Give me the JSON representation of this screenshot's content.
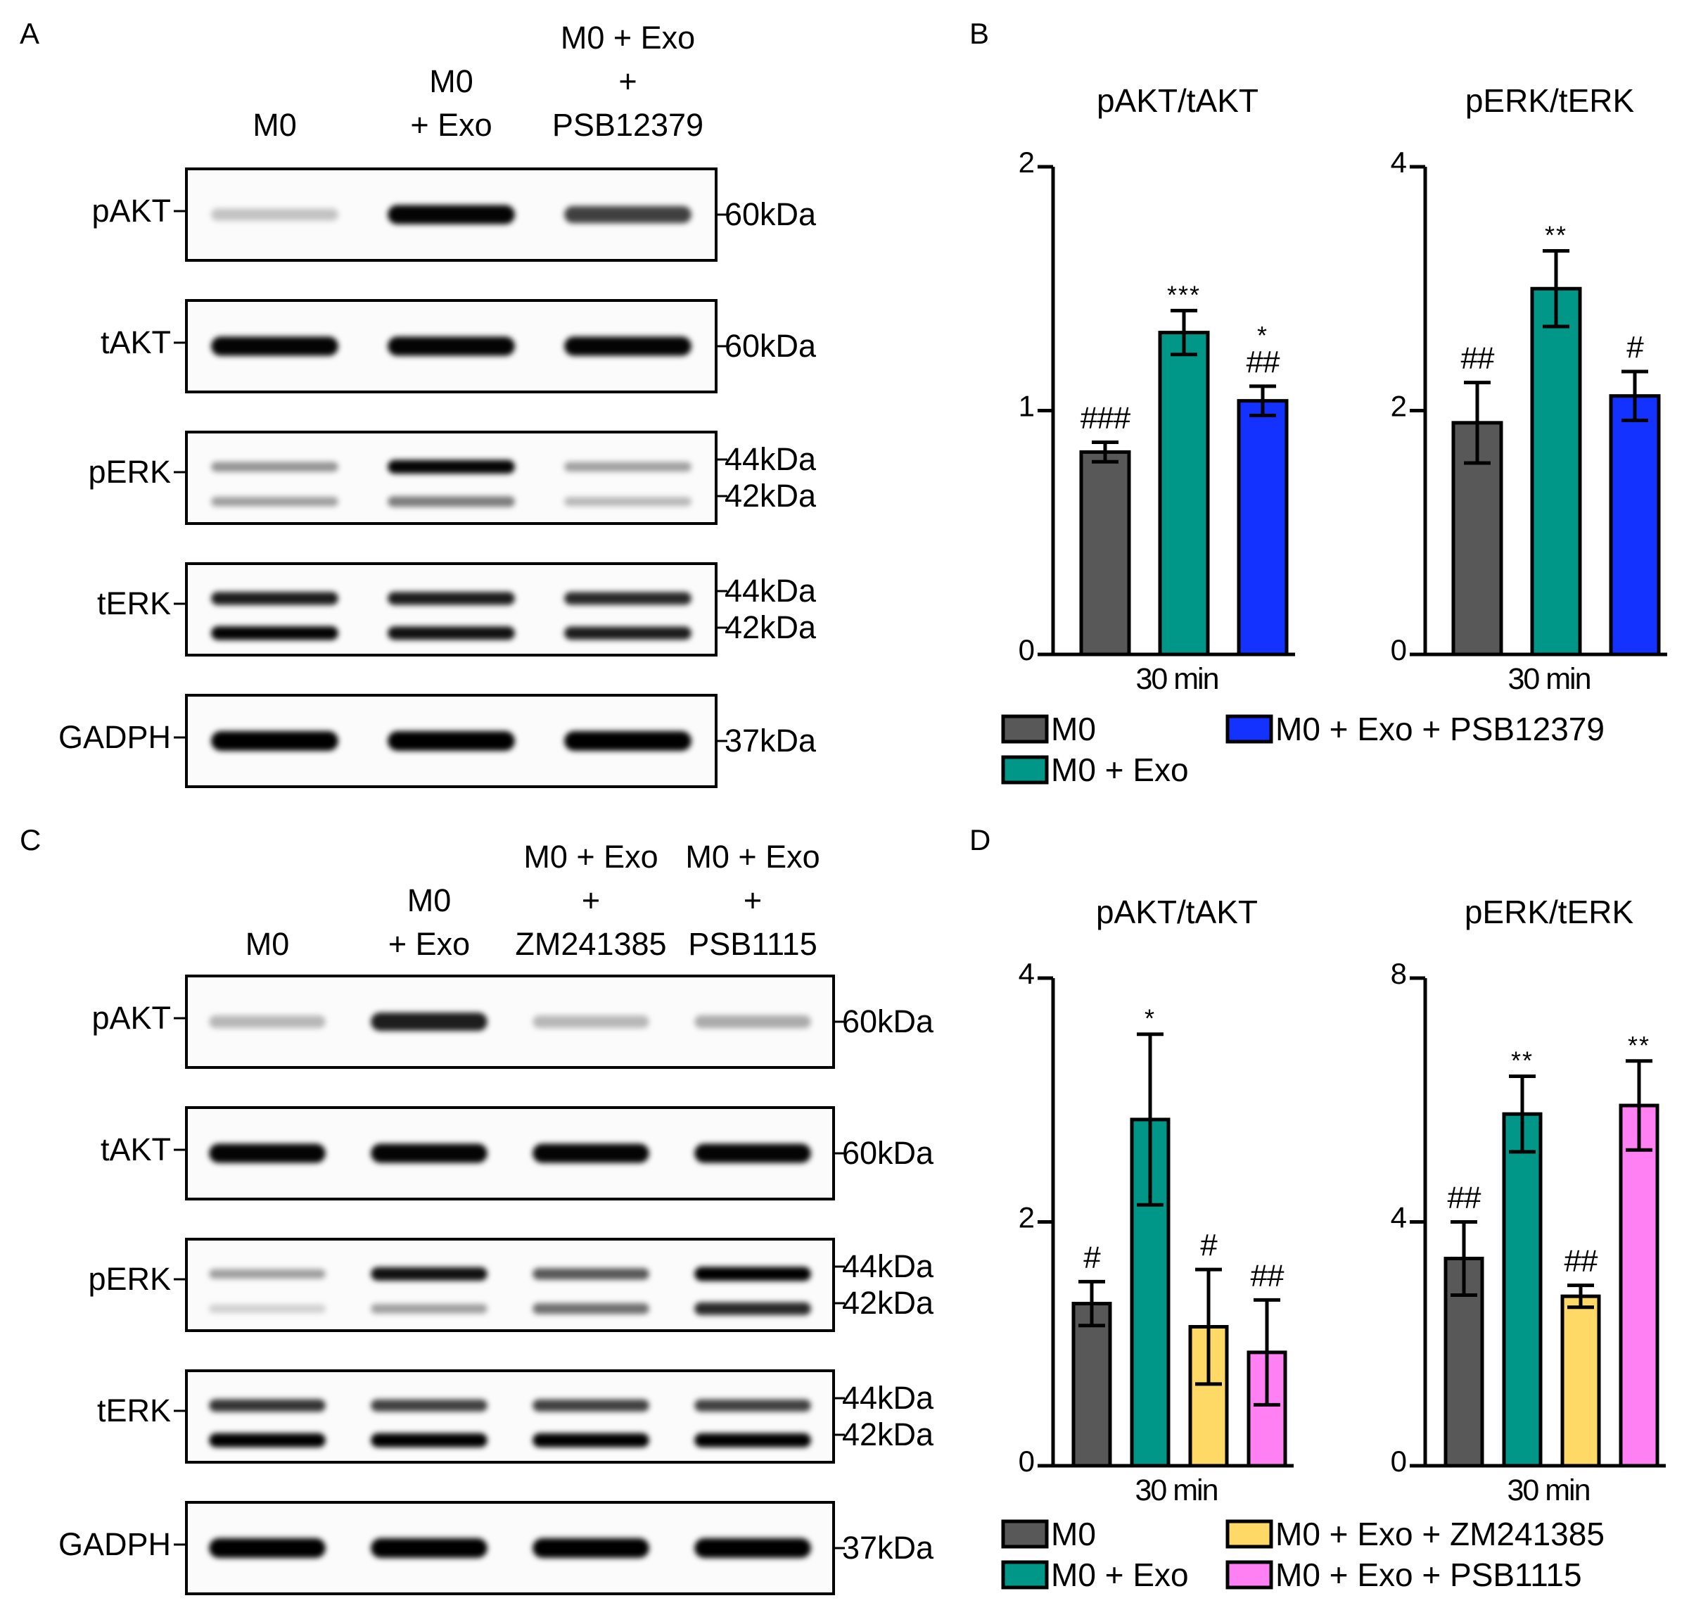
{
  "colors": {
    "m0": "#585858",
    "exo": "#009688",
    "psb12379": "#1432FF",
    "zm241385": "#FFD966",
    "psb1115": "#FF80F2"
  },
  "panels": {
    "A": {
      "letter": "A",
      "lanes": [
        [
          "M0"
        ],
        [
          "M0",
          "+ Exo"
        ],
        [
          "M0 + Exo",
          "+",
          "PSB12379"
        ]
      ],
      "blots": [
        {
          "label": "pAKT",
          "markers": [
            "60kDa"
          ],
          "bands": [
            [
              0.15,
              0.95,
              0.7
            ]
          ]
        },
        {
          "label": "tAKT",
          "markers": [
            "60kDa"
          ],
          "bands": [
            [
              0.95,
              0.95,
              0.95
            ]
          ]
        },
        {
          "label": "pERK",
          "markers": [
            "44kDa",
            "42kDa"
          ],
          "bands": [
            [
              0.35,
              0.95,
              0.3
            ],
            [
              0.3,
              0.45,
              0.2
            ]
          ]
        },
        {
          "label": "tERK",
          "markers": [
            "44kDa",
            "42kDa"
          ],
          "bands": [
            [
              0.85,
              0.85,
              0.8
            ],
            [
              0.95,
              0.9,
              0.85
            ]
          ]
        },
        {
          "label": "GADPH",
          "markers": [
            "37kDa"
          ],
          "bands": [
            [
              1.0,
              1.0,
              1.0
            ]
          ]
        }
      ]
    },
    "C": {
      "letter": "C",
      "lanes": [
        [
          "M0"
        ],
        [
          "M0",
          "+ Exo"
        ],
        [
          "M0 + Exo",
          "+",
          "ZM241385"
        ],
        [
          "M0 + Exo",
          "+",
          "PSB1115"
        ]
      ],
      "blots": [
        {
          "label": "pAKT",
          "markers": [
            "60kDa"
          ],
          "bands": [
            [
              0.2,
              0.85,
              0.2,
              0.25
            ]
          ]
        },
        {
          "label": "tAKT",
          "markers": [
            "60kDa"
          ],
          "bands": [
            [
              0.95,
              0.95,
              0.95,
              0.95
            ]
          ]
        },
        {
          "label": "pERK",
          "markers": [
            "44kDa",
            "42kDa"
          ],
          "bands": [
            [
              0.3,
              0.9,
              0.6,
              1.0
            ],
            [
              0.1,
              0.3,
              0.5,
              0.8
            ]
          ]
        },
        {
          "label": "tERK",
          "markers": [
            "44kDa",
            "42kDa"
          ],
          "bands": [
            [
              0.75,
              0.7,
              0.7,
              0.7
            ],
            [
              1.0,
              1.0,
              1.0,
              1.0
            ]
          ]
        },
        {
          "label": "GADPH",
          "markers": [
            "37kDa"
          ],
          "bands": [
            [
              1.0,
              1.0,
              1.0,
              1.0
            ]
          ]
        }
      ]
    },
    "B": {
      "letter": "B",
      "legend": [
        {
          "label": "M0",
          "color": "#585858"
        },
        {
          "label": "M0 + Exo",
          "color": "#009688"
        },
        {
          "label": "M0 + Exo + PSB12379",
          "color": "#1432FF"
        }
      ]
    },
    "D": {
      "letter": "D",
      "legend": [
        {
          "label": "M0",
          "color": "#585858"
        },
        {
          "label": "M0 + Exo",
          "color": "#009688"
        },
        {
          "label": "M0 + Exo + ZM241385",
          "color": "#FFD966"
        },
        {
          "label": "M0 + Exo + PSB1115",
          "color": "#FF80F2"
        }
      ]
    }
  },
  "chart_data": [
    {
      "panel": "B",
      "type": "bar",
      "title": "pAKT/tAKT",
      "xlabel": "30 min",
      "ylabel": "",
      "ylim": [
        0,
        2
      ],
      "yticks": [
        0,
        1,
        2
      ],
      "categories": [
        "M0",
        "M0 + Exo",
        "M0 + Exo + PSB12379"
      ],
      "values": [
        0.83,
        1.32,
        1.04
      ],
      "errors": [
        0.04,
        0.09,
        0.06
      ],
      "annotations": [
        [
          "###"
        ],
        [
          "***"
        ],
        [
          "*",
          "##"
        ]
      ]
    },
    {
      "panel": "B",
      "type": "bar",
      "title": "pERK/tERK",
      "xlabel": "30 min",
      "ylabel": "",
      "ylim": [
        0,
        4
      ],
      "yticks": [
        0,
        2,
        4
      ],
      "categories": [
        "M0",
        "M0 + Exo",
        "M0 + Exo + PSB12379"
      ],
      "values": [
        1.9,
        3.0,
        2.12
      ],
      "errors": [
        0.33,
        0.31,
        0.2
      ],
      "annotations": [
        [
          "##"
        ],
        [
          "**"
        ],
        [
          "#"
        ]
      ]
    },
    {
      "panel": "D",
      "type": "bar",
      "title": "pAKT/tAKT",
      "xlabel": "30 min",
      "ylabel": "",
      "ylim": [
        0,
        4
      ],
      "yticks": [
        0,
        2,
        4
      ],
      "categories": [
        "M0",
        "M0 + Exo",
        "M0 + Exo + ZM241385",
        "M0 + Exo + PSB1115"
      ],
      "values": [
        1.33,
        2.84,
        1.14,
        0.93
      ],
      "errors": [
        0.18,
        0.7,
        0.47,
        0.43
      ],
      "annotations": [
        [
          "#"
        ],
        [
          "*"
        ],
        [
          "#"
        ],
        [
          "##"
        ]
      ]
    },
    {
      "panel": "D",
      "type": "bar",
      "title": "pERK/tERK",
      "xlabel": "30 min",
      "ylabel": "",
      "ylim": [
        0,
        8
      ],
      "yticks": [
        0,
        4,
        8
      ],
      "categories": [
        "M0",
        "M0 + Exo",
        "M0 + Exo + ZM241385",
        "M0 + Exo + PSB1115"
      ],
      "values": [
        3.4,
        5.77,
        2.78,
        5.91
      ],
      "errors": [
        0.6,
        0.62,
        0.18,
        0.73
      ],
      "annotations": [
        [
          "##"
        ],
        [
          "**"
        ],
        [
          "##"
        ],
        [
          "**"
        ]
      ]
    }
  ]
}
